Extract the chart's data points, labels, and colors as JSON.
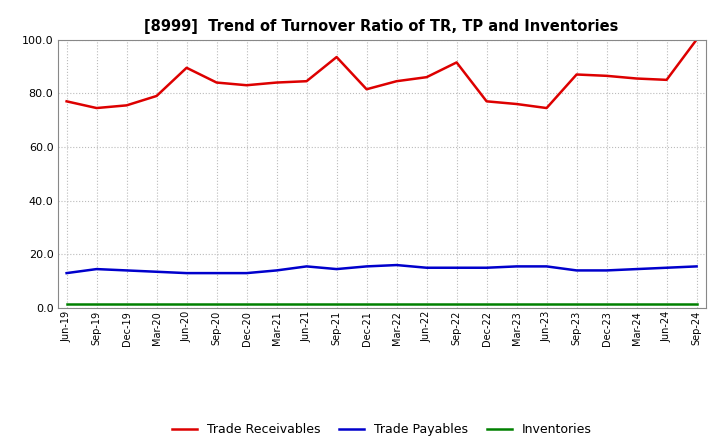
{
  "title": "[8999]  Trend of Turnover Ratio of TR, TP and Inventories",
  "x_labels": [
    "Jun-19",
    "Sep-19",
    "Dec-19",
    "Mar-20",
    "Jun-20",
    "Sep-20",
    "Dec-20",
    "Mar-21",
    "Jun-21",
    "Sep-21",
    "Dec-21",
    "Mar-22",
    "Jun-22",
    "Sep-22",
    "Dec-22",
    "Mar-23",
    "Jun-23",
    "Sep-23",
    "Dec-23",
    "Mar-24",
    "Jun-24",
    "Sep-24"
  ],
  "trade_receivables": [
    77.0,
    74.5,
    75.5,
    79.0,
    89.5,
    84.0,
    83.0,
    84.0,
    84.5,
    93.5,
    81.5,
    84.5,
    86.0,
    91.5,
    77.0,
    76.0,
    74.5,
    87.0,
    86.5,
    85.5,
    85.0,
    100.0
  ],
  "trade_payables": [
    13.0,
    14.5,
    14.0,
    13.5,
    13.0,
    13.0,
    13.0,
    14.0,
    15.5,
    14.5,
    15.5,
    16.0,
    15.0,
    15.0,
    15.0,
    15.5,
    15.5,
    14.0,
    14.0,
    14.5,
    15.0,
    15.5
  ],
  "inventories": [
    1.5,
    1.5,
    1.5,
    1.5,
    1.5,
    1.5,
    1.5,
    1.5,
    1.5,
    1.5,
    1.5,
    1.5,
    1.5,
    1.5,
    1.5,
    1.5,
    1.5,
    1.5,
    1.5,
    1.5,
    1.5,
    1.5
  ],
  "tr_color": "#dd0000",
  "tp_color": "#0000cc",
  "inv_color": "#008000",
  "ylim": [
    0,
    100
  ],
  "yticks": [
    0.0,
    20.0,
    40.0,
    60.0,
    80.0,
    100.0
  ],
  "background_color": "#ffffff",
  "grid_color": "#aaaaaa",
  "legend_labels": [
    "Trade Receivables",
    "Trade Payables",
    "Inventories"
  ]
}
